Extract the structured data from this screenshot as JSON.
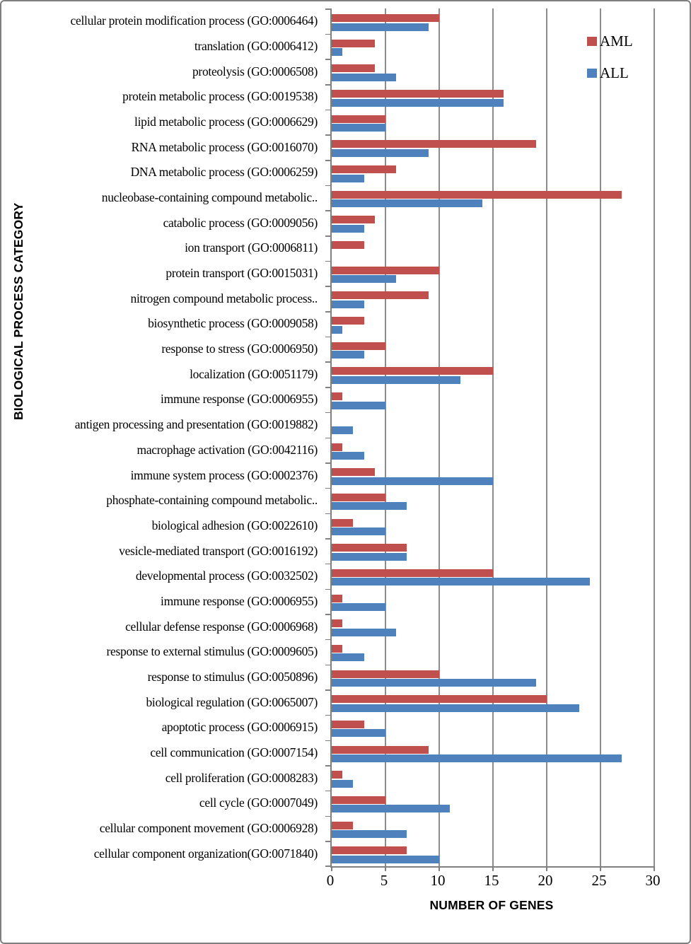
{
  "chart_data": {
    "type": "bar",
    "orientation": "horizontal",
    "title": "",
    "xlabel": "NUMBER OF GENES",
    "ylabel": "BIOLOGICAL PROCESS CATEGORY",
    "xlim": [
      0,
      30
    ],
    "xticks": [
      0,
      5,
      10,
      15,
      20,
      25,
      30
    ],
    "grid": true,
    "legend_position": "top-right",
    "categories": [
      "cellular protein modification process (GO:0006464)",
      "translation (GO:0006412)",
      "proteolysis (GO:0006508)",
      "protein metabolic process (GO:0019538)",
      "lipid metabolic process (GO:0006629)",
      "RNA metabolic process (GO:0016070)",
      "DNA metabolic process (GO:0006259)",
      "nucleobase-containing compound metabolic..",
      "catabolic process (GO:0009056)",
      "ion transport (GO:0006811)",
      "protein transport (GO:0015031)",
      "nitrogen compound metabolic process..",
      "biosynthetic process (GO:0009058)",
      "response to stress (GO:0006950)",
      "localization (GO:0051179)",
      "immune response (GO:0006955)",
      "antigen processing and presentation (GO:0019882)",
      "macrophage activation (GO:0042116)",
      "immune system process (GO:0002376)",
      "phosphate-containing compound metabolic..",
      "biological adhesion (GO:0022610)",
      "vesicle-mediated transport (GO:0016192)",
      "developmental process (GO:0032502)",
      "immune response (GO:0006955)",
      "cellular defense response (GO:0006968)",
      "response to external stimulus (GO:0009605)",
      "response to stimulus (GO:0050896)",
      "biological regulation (GO:0065007)",
      "apoptotic process (GO:0006915)",
      "cell communication (GO:0007154)",
      "cell proliferation (GO:0008283)",
      "cell cycle (GO:0007049)",
      "cellular component movement (GO:0006928)",
      "cellular component organization(GO:0071840)"
    ],
    "series": [
      {
        "name": "AML",
        "color": "#C0504D",
        "values": [
          10,
          4,
          4,
          16,
          5,
          19,
          6,
          27,
          4,
          3,
          10,
          9,
          3,
          5,
          15,
          1,
          0,
          1,
          4,
          5,
          2,
          7,
          15,
          1,
          1,
          1,
          10,
          20,
          3,
          9,
          1,
          5,
          2,
          7
        ]
      },
      {
        "name": "ALL",
        "color": "#4F81BD",
        "values": [
          9,
          1,
          6,
          16,
          5,
          9,
          3,
          14,
          3,
          0,
          6,
          3,
          1,
          3,
          12,
          5,
          2,
          3,
          15,
          7,
          5,
          7,
          24,
          5,
          6,
          3,
          19,
          23,
          5,
          27,
          2,
          11,
          7,
          10
        ]
      }
    ],
    "axis_color": "#808080",
    "gridline_color": "#8C8C8C",
    "frame_border_color": "#7F7F7F"
  }
}
